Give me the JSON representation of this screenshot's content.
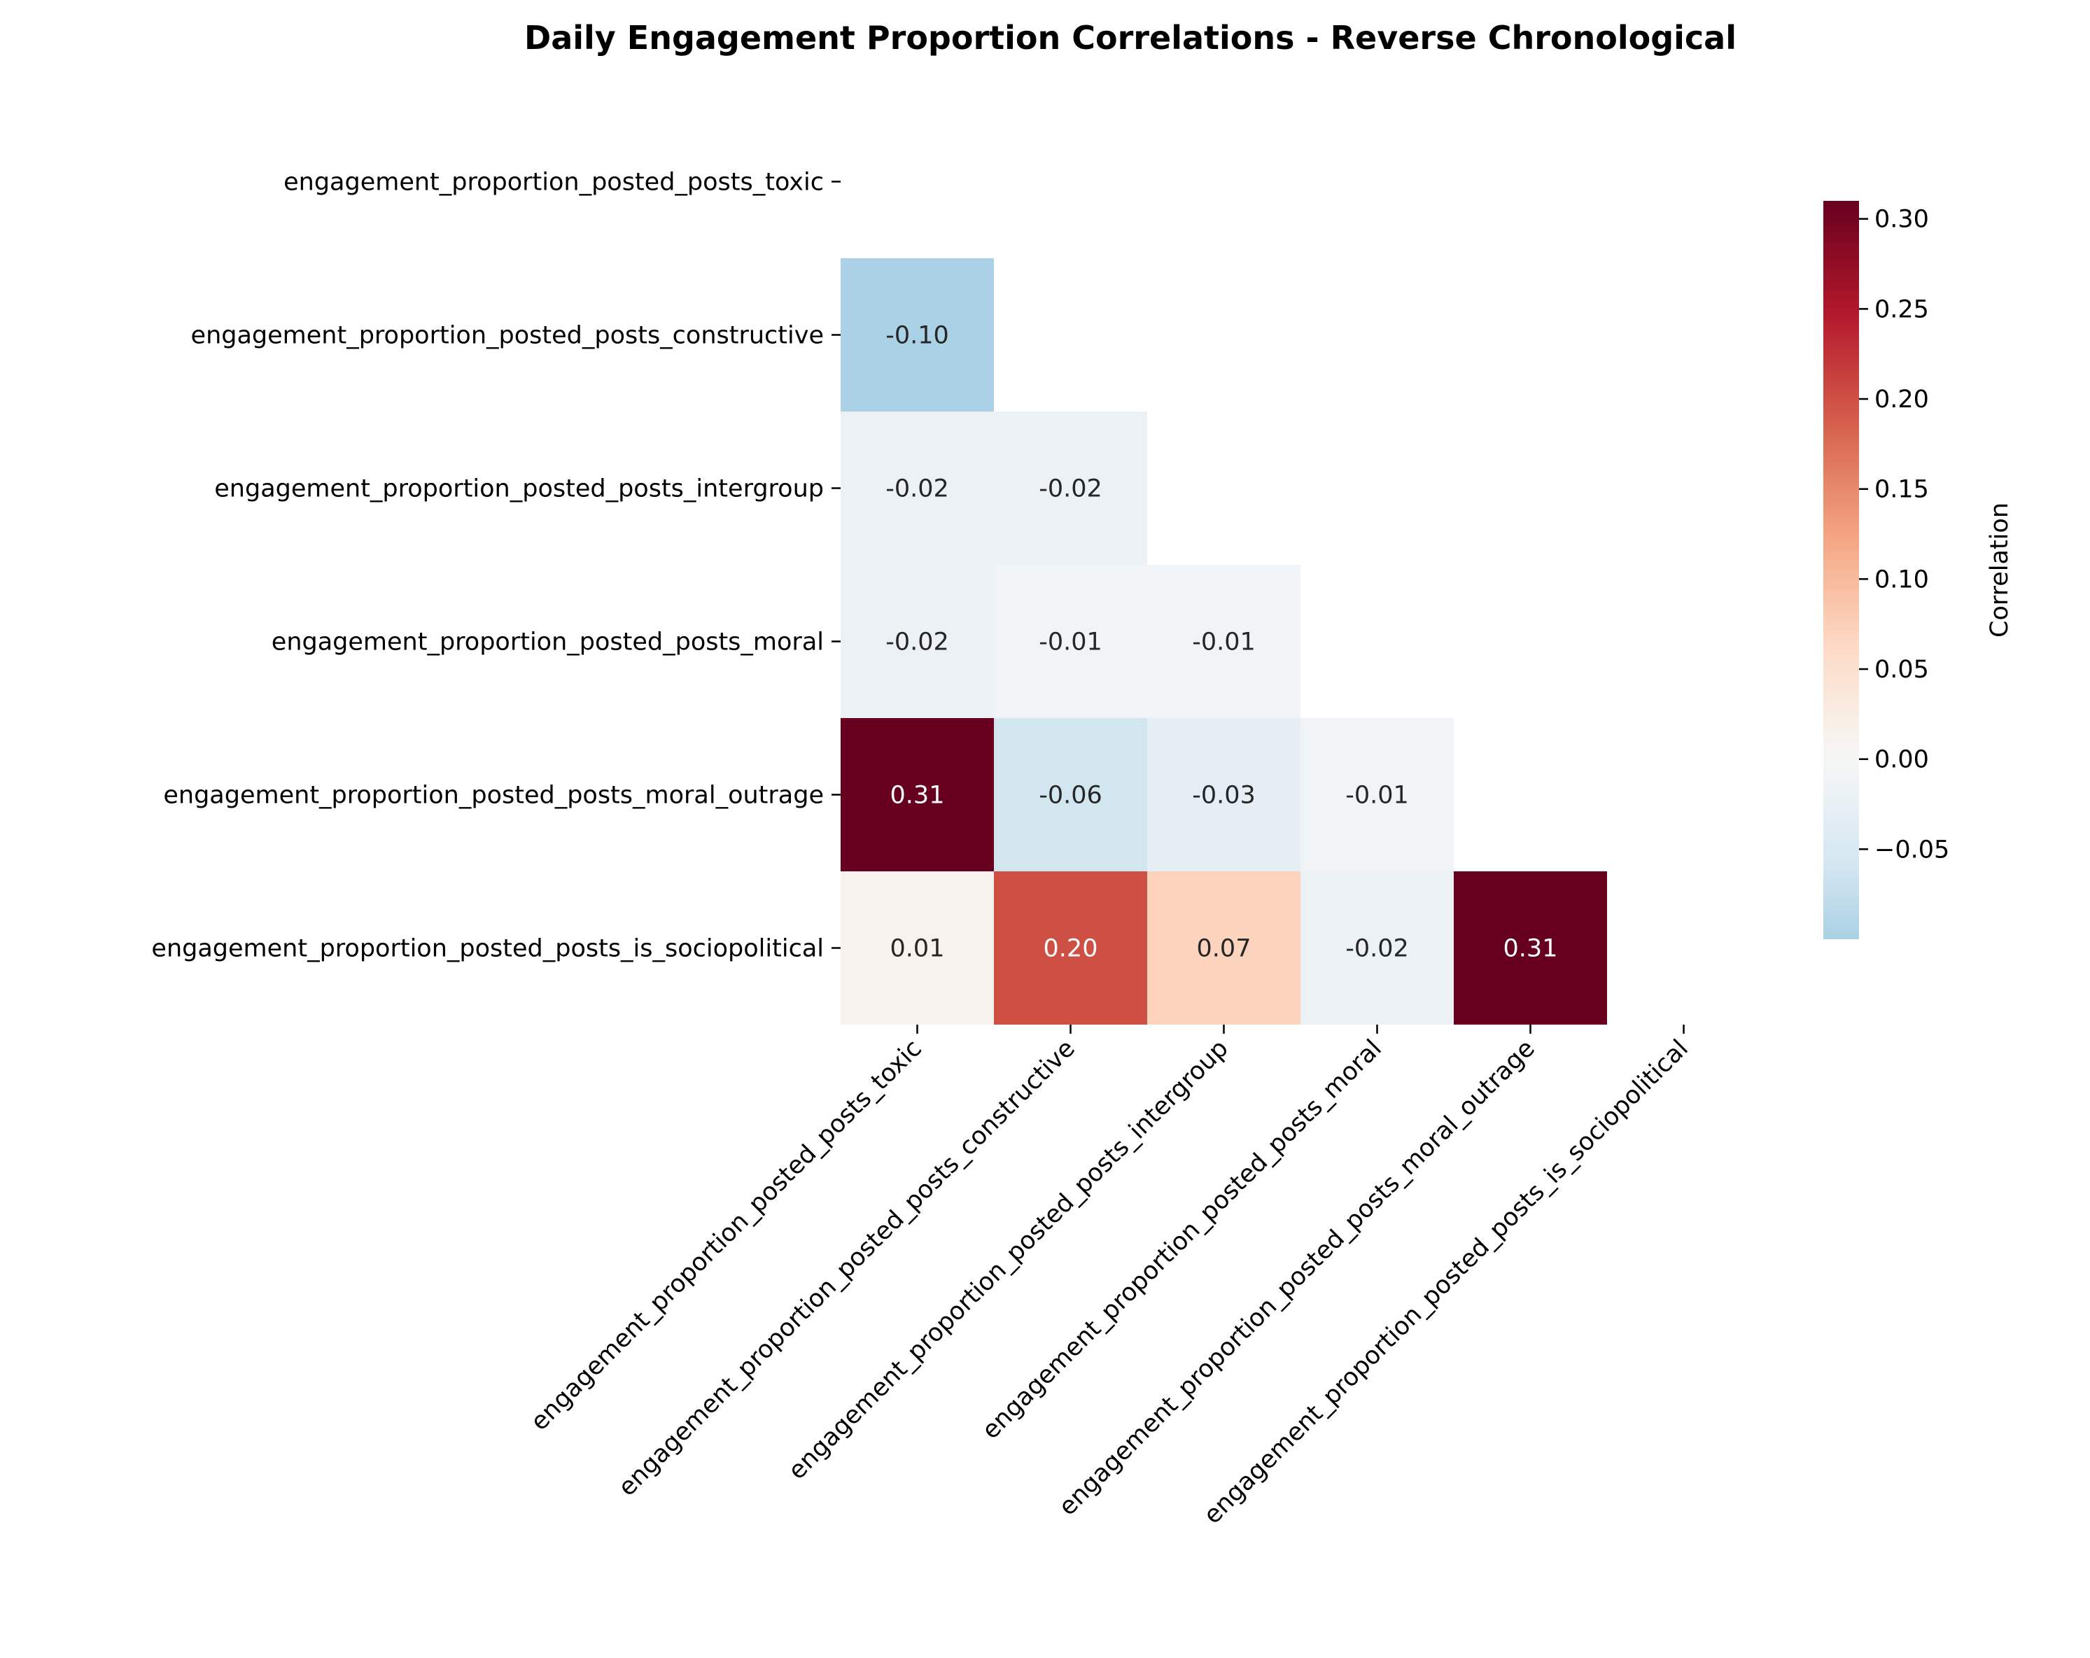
{
  "chart_data": {
    "type": "heatmap",
    "title": "Daily Engagement Proportion Correlations - Reverse Chronological",
    "variables": [
      "engagement_proportion_posted_posts_toxic",
      "engagement_proportion_posted_posts_constructive",
      "engagement_proportion_posted_posts_intergroup",
      "engagement_proportion_posted_posts_moral",
      "engagement_proportion_posted_posts_moral_outrage",
      "engagement_proportion_posted_posts_is_sociopolitical"
    ],
    "mask": "upper-triangle-and-diagonal",
    "matrix": [
      [
        null,
        null,
        null,
        null,
        null,
        null
      ],
      [
        -0.1,
        null,
        null,
        null,
        null,
        null
      ],
      [
        -0.02,
        -0.02,
        null,
        null,
        null,
        null
      ],
      [
        -0.02,
        -0.01,
        -0.01,
        null,
        null,
        null
      ],
      [
        0.31,
        -0.06,
        -0.03,
        -0.01,
        null,
        null
      ],
      [
        0.01,
        0.2,
        0.07,
        -0.02,
        0.31,
        null
      ]
    ],
    "value_labels": [
      [
        null,
        null,
        null,
        null,
        null,
        null
      ],
      [
        "-0.10",
        null,
        null,
        null,
        null,
        null
      ],
      [
        "-0.02",
        "-0.02",
        null,
        null,
        null,
        null
      ],
      [
        "-0.02",
        "-0.01",
        "-0.01",
        null,
        null,
        null
      ],
      [
        "0.31",
        "-0.06",
        "-0.03",
        "-0.01",
        null,
        null
      ],
      [
        "0.01",
        "0.20",
        "0.07",
        "-0.02",
        "0.31",
        null
      ]
    ],
    "colormap": "RdBu_r",
    "color_range": [
      -0.31,
      0.31
    ],
    "colorbar": {
      "label": "Correlation",
      "range": [
        -0.1,
        0.31
      ],
      "ticks": [
        -0.05,
        0.0,
        0.05,
        0.1,
        0.15,
        0.2,
        0.25,
        0.3
      ],
      "tick_labels": [
        "−0.05",
        "0.00",
        "0.05",
        "0.10",
        "0.15",
        "0.20",
        "0.25",
        "0.30"
      ]
    },
    "colors": {
      "neg_end": "#053061",
      "zero": "#f7f7f7",
      "pos_end": "#67001f"
    }
  }
}
